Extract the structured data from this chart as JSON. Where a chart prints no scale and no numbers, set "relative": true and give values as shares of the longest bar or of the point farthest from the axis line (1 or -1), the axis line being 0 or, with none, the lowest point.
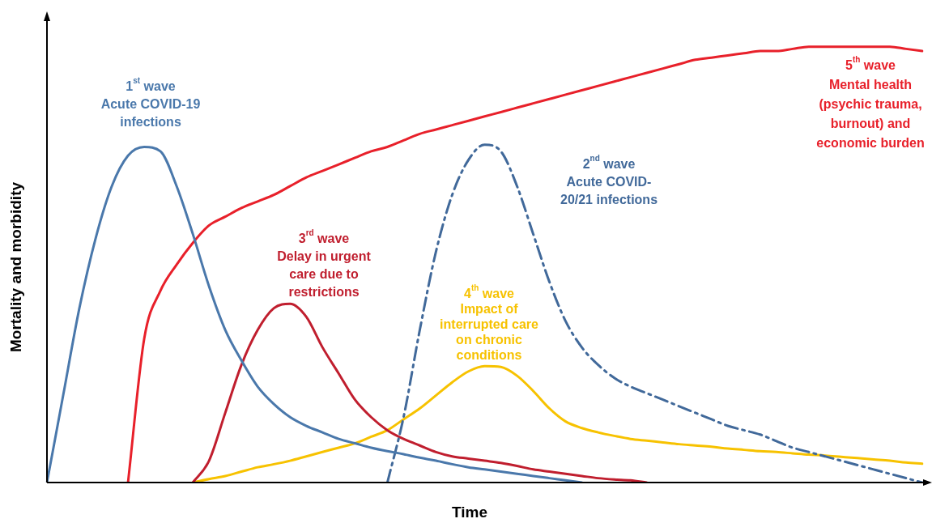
{
  "chart_data": {
    "type": "line",
    "relative": true,
    "xlabel": "Time",
    "ylabel": "Mortality and morbidity",
    "legend": false,
    "grid": false,
    "tick_labels": false,
    "marker": "none",
    "categories": [
      null,
      null,
      null,
      null,
      null,
      null,
      null,
      null,
      null,
      null,
      null,
      null,
      null,
      null,
      null,
      null,
      null,
      null,
      null,
      null,
      null,
      null,
      null,
      null,
      null,
      null,
      null,
      null,
      null,
      null,
      null,
      null,
      null,
      null,
      null,
      null,
      null,
      null,
      null,
      null,
      null,
      null,
      null,
      null,
      null,
      null,
      null,
      null,
      null,
      null,
      null,
      null,
      null,
      null,
      null
    ],
    "series": [
      {
        "name": "1$^{st}$ wave\nAcute COVID-19\ninfections",
        "color": "#4a78ab",
        "line_style": "solid",
        "values": [
          0,
          0.2,
          0.4,
          0.56,
          0.68,
          0.75,
          0.77,
          0.76,
          0.68,
          0.57,
          0.45,
          0.35,
          0.28,
          0.22,
          0.18,
          0.15,
          0.13,
          0.115,
          0.1,
          0.09,
          0.08,
          0.072,
          0.065,
          0.057,
          0.05,
          0.042,
          0.035,
          0.03,
          0.025,
          0.02,
          0.015,
          0.01,
          0.005,
          0,
          null,
          null,
          null,
          null,
          null,
          null,
          null,
          null,
          null,
          null,
          null,
          null,
          null,
          null,
          null,
          null,
          null,
          null,
          null,
          null,
          null
        ]
      },
      {
        "name": "2$^{nd}$ wave\nAcute COVID-\n20/21 infections",
        "color": "#41699a",
        "line_style": "dashed",
        "values": [
          null,
          null,
          null,
          null,
          null,
          null,
          null,
          null,
          null,
          null,
          null,
          null,
          null,
          null,
          null,
          null,
          null,
          null,
          null,
          null,
          null,
          0,
          0.15,
          0.35,
          0.53,
          0.66,
          0.74,
          0.775,
          0.76,
          0.68,
          0.57,
          0.46,
          0.37,
          0.31,
          0.27,
          0.24,
          0.22,
          0.205,
          0.19,
          0.175,
          0.16,
          0.145,
          0.13,
          0.12,
          0.11,
          0.095,
          0.08,
          0.07,
          0.06,
          0.05,
          0.04,
          0.03,
          0.02,
          0.01,
          0
        ]
      },
      {
        "name": "3$^{rd}$ wave\nDelay in urgent\ncare due to\nrestrictions",
        "color": "#c01e2e",
        "line_style": "solid",
        "values": [
          null,
          null,
          null,
          null,
          null,
          null,
          null,
          null,
          null,
          0,
          0.05,
          0.16,
          0.27,
          0.35,
          0.4,
          0.41,
          0.38,
          0.31,
          0.25,
          0.19,
          0.15,
          0.12,
          0.1,
          0.085,
          0.07,
          0.06,
          0.055,
          0.05,
          0.045,
          0.038,
          0.03,
          0.025,
          0.02,
          0.015,
          0.01,
          0.007,
          0.005,
          0,
          null,
          null,
          null,
          null,
          null,
          null,
          null,
          null,
          null,
          null,
          null,
          null,
          null,
          null,
          null,
          null,
          null
        ]
      },
      {
        "name": "4$^{th}$ wave\nImpact of\ninterrupted care\non chronic\nconditions",
        "color": "#f7c200",
        "line_style": "solid",
        "values": [
          null,
          null,
          null,
          null,
          null,
          null,
          null,
          null,
          null,
          0,
          0.008,
          0.015,
          0.025,
          0.035,
          0.042,
          0.05,
          0.06,
          0.07,
          0.08,
          0.09,
          0.105,
          0.12,
          0.145,
          0.17,
          0.2,
          0.23,
          0.255,
          0.267,
          0.265,
          0.245,
          0.21,
          0.17,
          0.14,
          0.125,
          0.115,
          0.107,
          0.1,
          0.096,
          0.092,
          0.088,
          0.085,
          0.082,
          0.078,
          0.075,
          0.072,
          0.07,
          0.067,
          0.064,
          0.062,
          0.059,
          0.056,
          0.053,
          0.05,
          0.046,
          0.043
        ]
      },
      {
        "name": "5$^{th}$ wave\nMental health\n(psychic trauma,\nburnout) and\neconomic burden",
        "color": "#e8202a",
        "line_style": "solid",
        "values": [
          null,
          null,
          null,
          null,
          null,
          0,
          0.33,
          0.44,
          0.5,
          0.55,
          0.59,
          0.61,
          0.63,
          0.645,
          0.66,
          0.68,
          0.7,
          0.715,
          0.73,
          0.745,
          0.76,
          0.77,
          0.785,
          0.8,
          0.81,
          0.82,
          0.83,
          0.84,
          0.85,
          0.86,
          0.87,
          0.88,
          0.89,
          0.9,
          0.91,
          0.92,
          0.93,
          0.94,
          0.95,
          0.96,
          0.97,
          0.975,
          0.98,
          0.985,
          0.99,
          0.99,
          0.995,
          1,
          1,
          1,
          1,
          1,
          1,
          0.995,
          0.99
        ]
      }
    ]
  }
}
